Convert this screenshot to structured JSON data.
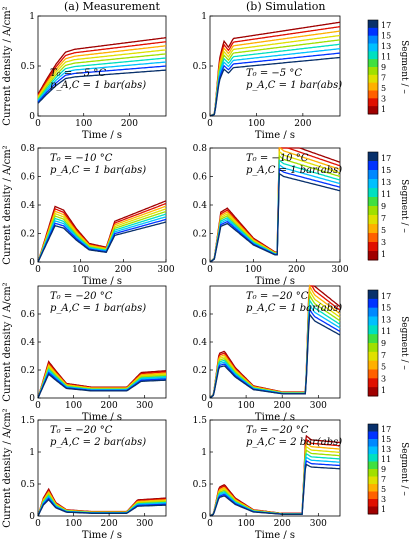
{
  "column_titles": [
    "(a) Measurement",
    "(b) Simulation"
  ],
  "axis_labels": {
    "y": "Current density / A/cm²",
    "x": "Time / s",
    "colorbar": "Segment / –"
  },
  "colorbar": {
    "ticks": [
      "17",
      "15",
      "13",
      "11",
      "9",
      "7",
      "5",
      "3",
      "1"
    ],
    "colors": [
      "#08306b",
      "#0033ff",
      "#0088ff",
      "#00c0ff",
      "#00e0c0",
      "#40e040",
      "#a0e000",
      "#e0e000",
      "#ffb000",
      "#ff6000",
      "#e01000",
      "#a00000"
    ]
  },
  "chart_data": [
    {
      "type": "line",
      "panel": "a-1",
      "annotation": [
        "T₀ = −5 °C",
        "p_A,C = 1 bar(abs)"
      ],
      "xlabel": "Time / s",
      "xlim": [
        0,
        280
      ],
      "xticks": [
        0,
        100,
        200
      ],
      "ylim": [
        0,
        1
      ],
      "yticks": [
        0,
        0.5,
        1
      ],
      "series_profile": [
        [
          0,
          0.15
        ],
        [
          20,
          0.26
        ],
        [
          40,
          0.36
        ],
        [
          60,
          0.44
        ],
        [
          80,
          0.46
        ],
        [
          280,
          0.54
        ]
      ],
      "segment_scale": [
        1.45,
        0.85
      ]
    },
    {
      "type": "line",
      "panel": "b-1",
      "annotation": [
        "T₀ = −5 °C",
        "p_A,C = 1 bar(abs)"
      ],
      "xlabel": "Time / s",
      "xlim": [
        0,
        280
      ],
      "xticks": [
        0,
        100,
        200
      ],
      "ylim": [
        0,
        1
      ],
      "yticks": [
        0,
        0.5,
        1
      ],
      "series_profile": [
        [
          0,
          0.0
        ],
        [
          10,
          0.02
        ],
        [
          20,
          0.45
        ],
        [
          30,
          0.6
        ],
        [
          40,
          0.55
        ],
        [
          50,
          0.62
        ],
        [
          280,
          0.75
        ]
      ],
      "segment_scale": [
        1.25,
        0.78
      ]
    },
    {
      "type": "line",
      "panel": "a-2",
      "annotation": [
        "T₀ = −10 °C",
        "p_A,C = 1 bar(abs)"
      ],
      "xlabel": "Time / s",
      "xlim": [
        0,
        300
      ],
      "xticks": [
        0,
        100,
        200,
        300
      ],
      "ylim": [
        0,
        0.8
      ],
      "yticks": [
        0,
        0.2,
        0.4,
        0.6,
        0.8
      ],
      "series_profile": [
        [
          0,
          0.0
        ],
        [
          20,
          0.15
        ],
        [
          40,
          0.3
        ],
        [
          60,
          0.28
        ],
        [
          90,
          0.18
        ],
        [
          120,
          0.1
        ],
        [
          160,
          0.08
        ],
        [
          180,
          0.22
        ],
        [
          300,
          0.33
        ]
      ],
      "segment_scale": [
        1.3,
        0.85
      ]
    },
    {
      "type": "line",
      "panel": "b-2",
      "annotation": [
        "T₀ = −10 °C",
        "p_A,C = 1 bar(abs)"
      ],
      "xlabel": "Time / s",
      "xlim": [
        0,
        300
      ],
      "xticks": [
        0,
        100,
        200,
        300
      ],
      "ylim": [
        0,
        0.8
      ],
      "yticks": [
        0,
        0.2,
        0.4,
        0.6,
        0.8
      ],
      "series_profile": [
        [
          0,
          0.0
        ],
        [
          10,
          0.02
        ],
        [
          25,
          0.25
        ],
        [
          40,
          0.27
        ],
        [
          60,
          0.22
        ],
        [
          100,
          0.12
        ],
        [
          150,
          0.05
        ],
        [
          155,
          0.05
        ],
        [
          160,
          0.62
        ],
        [
          170,
          0.6
        ],
        [
          300,
          0.5
        ]
      ],
      "segment_scale": [
        1.4,
        1.0
      ]
    },
    {
      "type": "line",
      "panel": "a-3",
      "annotation": [
        "T₀ = −20 °C",
        "p_A,C = 1 bar(abs)"
      ],
      "xlabel": "Time / s",
      "xlim": [
        0,
        360
      ],
      "xticks": [
        0,
        100,
        200,
        300
      ],
      "ylim": [
        0,
        0.8
      ],
      "yticks": [
        0,
        0.2,
        0.4,
        0.6
      ],
      "series_profile": [
        [
          0,
          0.0
        ],
        [
          15,
          0.1
        ],
        [
          30,
          0.2
        ],
        [
          50,
          0.15
        ],
        [
          80,
          0.08
        ],
        [
          150,
          0.06
        ],
        [
          250,
          0.06
        ],
        [
          290,
          0.14
        ],
        [
          360,
          0.15
        ]
      ],
      "segment_scale": [
        1.3,
        0.85
      ]
    },
    {
      "type": "line",
      "panel": "b-3",
      "annotation": [
        "T₀ = −20 °C",
        "p_A,C = 1 bar(abs)"
      ],
      "xlabel": "Time / s",
      "xlim": [
        0,
        360
      ],
      "xticks": [
        0,
        100,
        200,
        300
      ],
      "ylim": [
        0,
        0.8
      ],
      "yticks": [
        0,
        0.2,
        0.4,
        0.6
      ],
      "series_profile": [
        [
          0,
          0.0
        ],
        [
          10,
          0.02
        ],
        [
          25,
          0.22
        ],
        [
          40,
          0.23
        ],
        [
          70,
          0.15
        ],
        [
          120,
          0.06
        ],
        [
          200,
          0.03
        ],
        [
          265,
          0.03
        ],
        [
          275,
          0.6
        ],
        [
          290,
          0.55
        ],
        [
          360,
          0.45
        ]
      ],
      "segment_scale": [
        1.45,
        1.0
      ]
    },
    {
      "type": "line",
      "panel": "a-4",
      "annotation": [
        "T₀ = −20 °C",
        "p_A,C = 2 bar(abs)"
      ],
      "xlabel": "Time / s",
      "xlim": [
        0,
        360
      ],
      "xticks": [
        0,
        100,
        200,
        300
      ],
      "ylim": [
        0,
        1.5
      ],
      "yticks": [
        0,
        0.5,
        1,
        1.5
      ],
      "series_profile": [
        [
          0,
          0.0
        ],
        [
          15,
          0.2
        ],
        [
          30,
          0.3
        ],
        [
          50,
          0.15
        ],
        [
          80,
          0.07
        ],
        [
          150,
          0.05
        ],
        [
          250,
          0.05
        ],
        [
          280,
          0.18
        ],
        [
          360,
          0.2
        ]
      ],
      "segment_scale": [
        1.4,
        0.85
      ]
    },
    {
      "type": "line",
      "panel": "b-4",
      "annotation": [
        "T₀ = −20 °C",
        "p_A,C = 2 bar(abs)"
      ],
      "xlabel": "Time / s",
      "xlim": [
        0,
        360
      ],
      "xticks": [
        0,
        100,
        200,
        300
      ],
      "ylim": [
        0,
        1.5
      ],
      "yticks": [
        0,
        0.5,
        1,
        1.5
      ],
      "series_profile": [
        [
          0,
          0.0
        ],
        [
          10,
          0.03
        ],
        [
          25,
          0.32
        ],
        [
          40,
          0.35
        ],
        [
          70,
          0.2
        ],
        [
          120,
          0.07
        ],
        [
          200,
          0.03
        ],
        [
          255,
          0.03
        ],
        [
          265,
          0.9
        ],
        [
          280,
          0.85
        ],
        [
          360,
          0.82
        ]
      ],
      "segment_scale": [
        1.4,
        0.9
      ]
    }
  ]
}
